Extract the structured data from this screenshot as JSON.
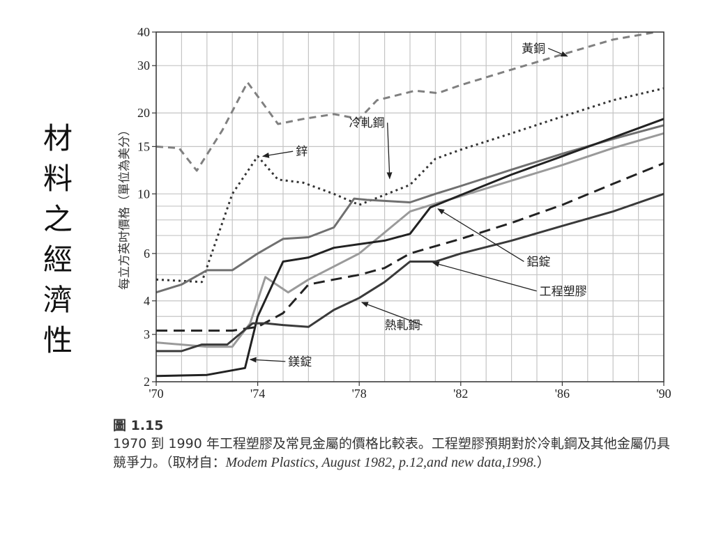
{
  "page": {
    "side_title": "材料之經濟性"
  },
  "figure": {
    "label": "圖 1.15",
    "caption": "1970 到 1990 年工程塑膠及常見金屬的價格比較表。工程塑膠預期對於冷軋鋼及其他金屬仍具競爭力。（取材自：",
    "source": "Modem Plastics, August 1982, p.12,and new data,1998.",
    "caption_end": "）"
  },
  "chart_data": {
    "type": "line",
    "title": "",
    "xlabel": "",
    "ylabel": "每立方英吋價格（單位為美分）",
    "xlim": [
      1970,
      1990
    ],
    "ylim": [
      2,
      40
    ],
    "y_scale": "log",
    "grid": true,
    "x_ticks": [
      {
        "value": 1970,
        "label": "'70"
      },
      {
        "value": 1974,
        "label": "'74"
      },
      {
        "value": 1978,
        "label": "'78"
      },
      {
        "value": 1982,
        "label": "'82"
      },
      {
        "value": 1986,
        "label": "'86"
      },
      {
        "value": 1990,
        "label": "'90"
      }
    ],
    "x_grid": [
      1970,
      1971,
      1972,
      1973,
      1974,
      1975,
      1976,
      1977,
      1978,
      1979,
      1980,
      1981,
      1982,
      1983,
      1984,
      1985,
      1986,
      1987,
      1988,
      1989,
      1990
    ],
    "y_ticks": [
      2,
      3,
      4,
      6,
      10,
      15,
      20,
      30,
      40
    ],
    "y_grid": [
      2,
      2.5,
      3,
      3.5,
      4,
      5,
      6,
      7,
      8,
      9,
      10,
      15,
      20,
      30,
      40
    ],
    "series": [
      {
        "name": "黃銅",
        "color": "#808080",
        "dash": "10,7",
        "width": 3,
        "x": [
          1970,
          1970.9,
          1971.6,
          1972.6,
          1973.6,
          1974.8,
          1975.8,
          1977,
          1978,
          1978.7,
          1980.2,
          1981.1,
          1982,
          1984,
          1986,
          1988,
          1989.7
        ],
        "y": [
          15,
          14.8,
          12.2,
          17.2,
          26,
          18.2,
          19,
          19.8,
          19,
          22.3,
          24.2,
          23.7,
          25.4,
          29,
          33,
          37.5,
          40
        ]
      },
      {
        "name": "鋅",
        "color": "#333333",
        "dash": "3,5",
        "width": 3,
        "x": [
          1970,
          1971.8,
          1973,
          1974,
          1974.8,
          1975.8,
          1977,
          1978,
          1980,
          1981,
          1982,
          1984,
          1986,
          1988,
          1990
        ],
        "y": [
          4.8,
          4.7,
          10,
          13.8,
          11.3,
          11,
          10,
          9.1,
          10.8,
          13.5,
          14.6,
          16.8,
          19.4,
          22.3,
          24.7
        ]
      },
      {
        "name": "冷軋鋼",
        "color": "#707070",
        "dash": "",
        "width": 3,
        "x": [
          1970,
          1971,
          1972,
          1973,
          1974,
          1975,
          1976,
          1977,
          1977.8,
          1978.3,
          1980,
          1981,
          1982,
          1984,
          1986,
          1988,
          1990
        ],
        "y": [
          4.3,
          4.6,
          5.2,
          5.2,
          6,
          6.8,
          6.9,
          7.5,
          9.6,
          9.5,
          9.3,
          10,
          10.7,
          12.3,
          14.1,
          16,
          18
        ]
      },
      {
        "name": "鋁錠",
        "color": "#9a9a9a",
        "dash": "",
        "width": 3,
        "x": [
          1970,
          1972,
          1973,
          1973.7,
          1974.3,
          1975.2,
          1976,
          1978,
          1980,
          1981,
          1982,
          1984,
          1986,
          1988,
          1990
        ],
        "y": [
          2.8,
          2.7,
          2.7,
          3.3,
          4.9,
          4.3,
          4.8,
          6,
          8.6,
          9.2,
          9.8,
          11.2,
          12.8,
          14.8,
          16.8
        ]
      },
      {
        "name": "鎂錠",
        "color": "#222222",
        "dash": "",
        "width": 3,
        "x": [
          1970,
          1972,
          1973.5,
          1974,
          1975,
          1976,
          1977,
          1978,
          1979,
          1980,
          1980.8,
          1982,
          1984,
          1986,
          1988,
          1990
        ],
        "y": [
          2.1,
          2.12,
          2.25,
          3.5,
          5.6,
          5.8,
          6.3,
          6.5,
          6.7,
          7.1,
          8.9,
          9.9,
          11.8,
          13.8,
          16.2,
          19
        ]
      },
      {
        "name": "工程塑膠",
        "color": "#222222",
        "dash": "16,9",
        "width": 3,
        "x": [
          1970,
          1972,
          1973,
          1974,
          1975,
          1976,
          1977,
          1978,
          1979,
          1980,
          1982,
          1984,
          1986,
          1988,
          1990
        ],
        "y": [
          3.1,
          3.1,
          3.1,
          3.2,
          3.6,
          4.6,
          4.8,
          5,
          5.3,
          6,
          6.8,
          7.8,
          9.1,
          10.9,
          13
        ]
      },
      {
        "name": "熱軋鋼",
        "color": "#3a3a3a",
        "dash": "",
        "width": 3,
        "x": [
          1970,
          1971,
          1971.8,
          1972.8,
          1973.8,
          1974.3,
          1975,
          1976,
          1977,
          1978,
          1979,
          1980,
          1981,
          1982,
          1984,
          1986,
          1988,
          1990
        ],
        "y": [
          2.6,
          2.6,
          2.75,
          2.75,
          3.3,
          3.3,
          3.25,
          3.2,
          3.7,
          4.1,
          4.7,
          5.6,
          5.6,
          6,
          6.7,
          7.6,
          8.6,
          10
        ]
      }
    ],
    "annotations": [
      {
        "series": "黃銅",
        "text": "黃銅",
        "lx": 1984.4,
        "ly": 34.8,
        "tx": 1986.2,
        "ty": 32.5,
        "anchor": "start"
      },
      {
        "series": "鋅",
        "text": "鋅",
        "lx": 1975.5,
        "ly": 14.4,
        "tx": 1974.2,
        "ty": 13.8,
        "anchor": "start"
      },
      {
        "series": "冷軋鋼",
        "text": "冷軋鋼",
        "lx": 1977.6,
        "ly": 18.4,
        "tx": 1979.2,
        "ty": 11.4,
        "anchor": "start"
      },
      {
        "series": "鋁錠",
        "text": "鋁錠",
        "lx": 1984.6,
        "ly": 5.6,
        "tx": 1981.1,
        "ty": 8.8,
        "anchor": "start"
      },
      {
        "series": "工程塑膠",
        "text": "工程塑膠",
        "lx": 1985.1,
        "ly": 4.35,
        "tx": 1980.9,
        "ty": 5.55,
        "anchor": "start"
      },
      {
        "series": "熱軋鋼",
        "text": "熱軋鋼",
        "lx": 1979.0,
        "ly": 3.25,
        "tx": 1978.1,
        "ty": 3.95,
        "anchor": "end"
      },
      {
        "series": "鎂錠",
        "text": "鎂錠",
        "lx": 1975.2,
        "ly": 2.38,
        "tx": 1973.7,
        "ty": 2.42,
        "anchor": "start"
      }
    ]
  }
}
